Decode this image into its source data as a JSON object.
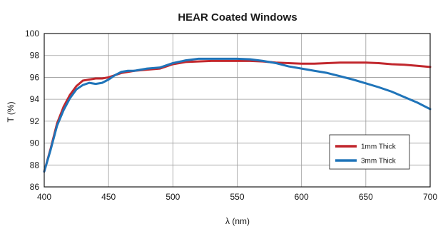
{
  "chart_data": {
    "type": "line",
    "title": "HEAR Coated Windows",
    "xlabel": "λ (nm)",
    "ylabel": "T (%)",
    "xlim": [
      400,
      700
    ],
    "ylim": [
      86,
      100
    ],
    "x_ticks": [
      400,
      450,
      500,
      550,
      600,
      650,
      700
    ],
    "y_ticks": [
      86,
      88,
      90,
      92,
      94,
      96,
      98,
      100
    ],
    "grid": true,
    "legend_position": "lower-right",
    "series": [
      {
        "name": "1mm Thick",
        "color": "#c1272d",
        "x": [
          400,
          405,
          410,
          415,
          420,
          425,
          430,
          435,
          440,
          445,
          450,
          455,
          460,
          465,
          470,
          480,
          490,
          500,
          510,
          520,
          530,
          540,
          550,
          560,
          570,
          580,
          590,
          600,
          610,
          620,
          630,
          640,
          650,
          660,
          670,
          680,
          690,
          700
        ],
        "y": [
          87.4,
          89.5,
          91.8,
          93.3,
          94.4,
          95.2,
          95.7,
          95.8,
          95.9,
          95.9,
          96.0,
          96.2,
          96.4,
          96.5,
          96.6,
          96.7,
          96.8,
          97.2,
          97.4,
          97.45,
          97.5,
          97.5,
          97.5,
          97.5,
          97.45,
          97.35,
          97.3,
          97.25,
          97.25,
          97.3,
          97.35,
          97.35,
          97.35,
          97.3,
          97.2,
          97.15,
          97.05,
          96.95
        ]
      },
      {
        "name": "3mm Thick",
        "color": "#1f74b9",
        "x": [
          400,
          405,
          410,
          415,
          420,
          425,
          430,
          435,
          440,
          445,
          450,
          455,
          460,
          465,
          470,
          480,
          490,
          500,
          510,
          520,
          530,
          540,
          550,
          560,
          570,
          580,
          590,
          600,
          610,
          620,
          630,
          640,
          650,
          660,
          670,
          680,
          690,
          700
        ],
        "y": [
          87.4,
          89.4,
          91.6,
          93.0,
          94.1,
          94.9,
          95.3,
          95.5,
          95.4,
          95.5,
          95.8,
          96.2,
          96.5,
          96.6,
          96.6,
          96.8,
          96.9,
          97.3,
          97.55,
          97.7,
          97.7,
          97.7,
          97.7,
          97.65,
          97.5,
          97.3,
          97.0,
          96.8,
          96.6,
          96.4,
          96.1,
          95.8,
          95.45,
          95.1,
          94.7,
          94.2,
          93.7,
          93.1
        ]
      }
    ]
  }
}
